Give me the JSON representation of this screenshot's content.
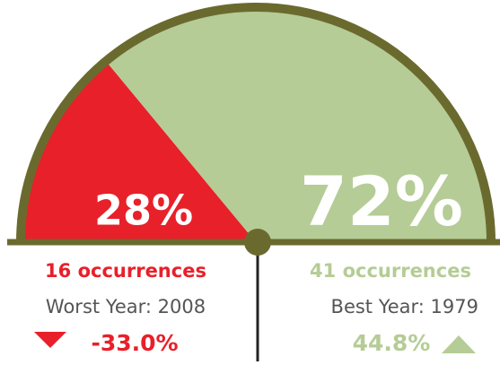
{
  "chart_data": {
    "type": "pie",
    "categories": [
      null,
      null
    ],
    "values": [
      28,
      72
    ],
    "value_labels": [
      "28%",
      "72%"
    ],
    "colors": [
      "#e8202a",
      "#b5cc96"
    ],
    "annotations": [
      {
        "occurrences": "16 occurrences",
        "year": "Worst Year: 2008",
        "change": "-33.0%"
      },
      {
        "occurrences": "41 occurrences",
        "year": "Best Year: 1979",
        "change": "44.8%"
      }
    ]
  }
}
